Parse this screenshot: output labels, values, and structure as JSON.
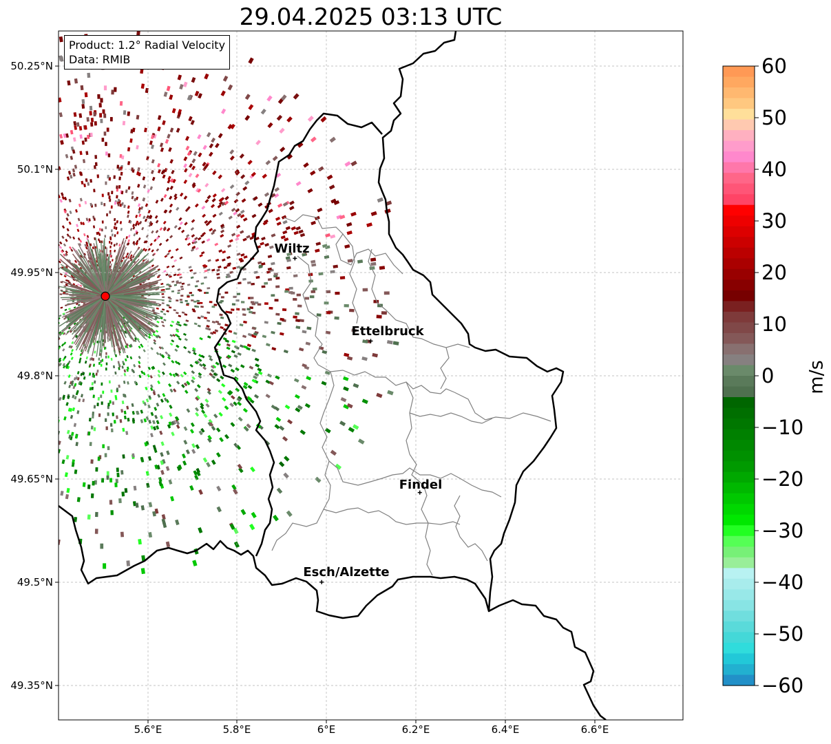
{
  "title": "29.04.2025 03:13 UTC",
  "info_box": {
    "product_line": "Product: 1.2° Radial Velocity",
    "data_line": "Data: RMIB"
  },
  "lat_labels": [
    "50.25°N",
    "50.1°N",
    "49.95°N",
    "49.8°N",
    "49.65°N",
    "49.5°N",
    "49.35°N"
  ],
  "lon_labels": [
    "5.6°E",
    "5.8°E",
    "6°E",
    "6.2°E",
    "6.4°E",
    "6.6°E"
  ],
  "cities": [
    {
      "name": "Wiltz",
      "lon": 5.93,
      "lat": 49.97
    },
    {
      "name": "Ettelbruck",
      "lon": 6.1,
      "lat": 49.85
    },
    {
      "name": "Findel",
      "lon": 6.21,
      "lat": 49.63
    },
    {
      "name": "Esch/Alzette",
      "lon": 5.99,
      "lat": 49.5
    }
  ],
  "radar_site": {
    "lon": 5.505,
    "lat": 49.915
  },
  "map_extent": {
    "lon": [
      5.4,
      6.8
    ],
    "lat": [
      49.3,
      50.3
    ]
  },
  "gridlines": "dashed",
  "colorbar": {
    "label": "m/s",
    "range": [
      -60,
      60
    ],
    "tick_labels": [
      "60",
      "50",
      "40",
      "30",
      "20",
      "10",
      "0",
      "−10",
      "−20",
      "−30",
      "−40",
      "−50",
      "−60"
    ],
    "colors_top_to_bottom": [
      "#ff9955",
      "#ffa860",
      "#ffb870",
      "#ffc880",
      "#ffdf9a",
      "#ffc9b0",
      "#ffb0c0",
      "#ff9ccb",
      "#ff88cc",
      "#ff77aa",
      "#ff6688",
      "#ff5577",
      "#ff4466",
      "#ff0000",
      "#ee0000",
      "#dd0000",
      "#cc0000",
      "#bb0000",
      "#aa0000",
      "#990000",
      "#880000",
      "#770000",
      "#7a2020",
      "#7e3a3a",
      "#804848",
      "#845858",
      "#887070",
      "#868080",
      "#6a8a6a",
      "#5a7a5a",
      "#4f704f",
      "#006600",
      "#006f00",
      "#007700",
      "#008000",
      "#008800",
      "#009000",
      "#009a00",
      "#00a800",
      "#00b800",
      "#00c800",
      "#00d800",
      "#00e800",
      "#22ff22",
      "#55ff55",
      "#77f077",
      "#99ee99",
      "#b8f2f2",
      "#a8ecec",
      "#98e8e8",
      "#88e4e4",
      "#70dede",
      "#5adada",
      "#44d8d8",
      "#30dcdc",
      "#22c8d8",
      "#22b0d0",
      "#2290c8"
    ]
  }
}
